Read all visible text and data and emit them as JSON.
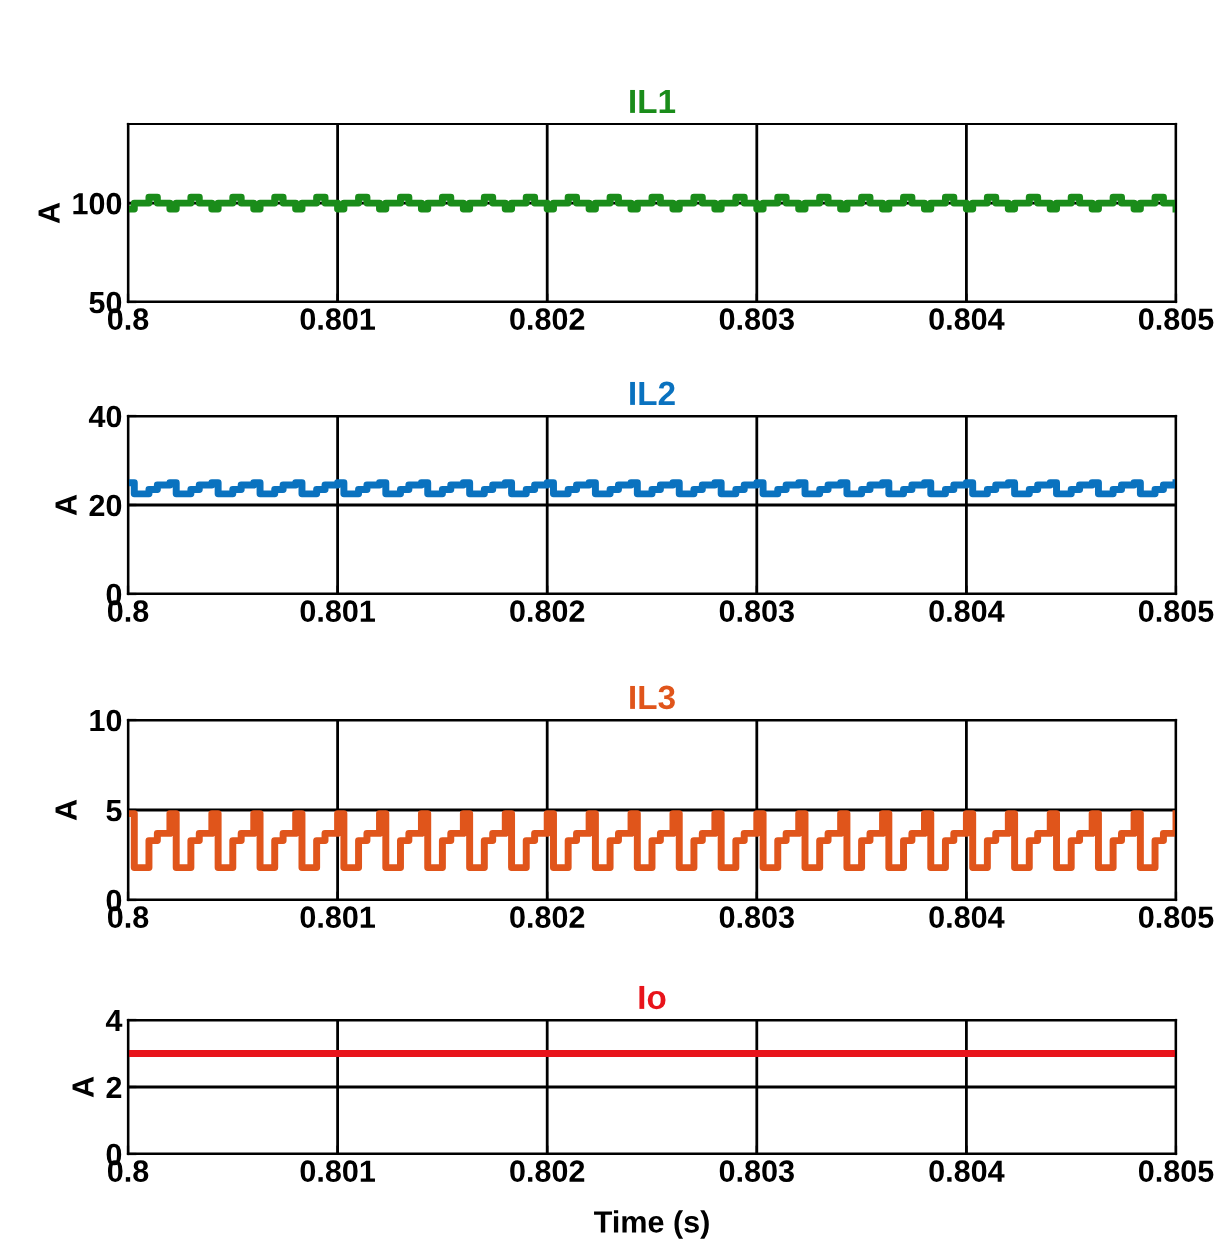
{
  "chart_data": [
    {
      "type": "step",
      "title": "IL1",
      "ylabel": "A",
      "xlim": [
        0.8,
        0.805
      ],
      "ylim": [
        50,
        140
      ],
      "xticks": [
        0.8,
        0.801,
        0.802,
        0.803,
        0.804,
        0.805
      ],
      "yticks": [
        50,
        100
      ],
      "grid": true,
      "x": [
        0.8,
        0.80003,
        0.8001,
        0.80014,
        0.8002,
        0.80023,
        0.8003,
        0.80034,
        0.8004,
        0.80043,
        0.8005,
        0.80054,
        0.8006,
        0.80063,
        0.8007,
        0.80074,
        0.8008,
        0.80083,
        0.8009,
        0.80094,
        0.801,
        0.80103,
        0.8011,
        0.80114,
        0.8012,
        0.80123,
        0.8013,
        0.80134,
        0.8014,
        0.80143,
        0.8015,
        0.80154,
        0.8016,
        0.80163,
        0.8017,
        0.80174,
        0.8018,
        0.80183,
        0.8019,
        0.80194,
        0.802,
        0.80203,
        0.8021,
        0.80214,
        0.8022,
        0.80223,
        0.8023,
        0.80234,
        0.8024,
        0.80243,
        0.8025,
        0.80254,
        0.8026,
        0.80263,
        0.8027,
        0.80274,
        0.8028,
        0.80283,
        0.8029,
        0.80294,
        0.803,
        0.80303,
        0.8031,
        0.80314,
        0.8032,
        0.80323,
        0.8033,
        0.80334,
        0.8034,
        0.80343,
        0.8035,
        0.80354,
        0.8036,
        0.80363,
        0.8037,
        0.80374,
        0.8038,
        0.80383,
        0.8039,
        0.80394,
        0.804,
        0.80403,
        0.8041,
        0.80414,
        0.8042,
        0.80423,
        0.8043,
        0.80434,
        0.8044,
        0.80443,
        0.8045,
        0.80454,
        0.8046,
        0.80463,
        0.8047,
        0.80474,
        0.8048,
        0.80483,
        0.8049,
        0.80494,
        0.805
      ],
      "series": [
        {
          "color": "#1a8c1a",
          "values": [
            97,
            100,
            103,
            100,
            97,
            100,
            103,
            100,
            97,
            100,
            103,
            100,
            97,
            100,
            103,
            100,
            97,
            100,
            103,
            100,
            97,
            100,
            103,
            100,
            97,
            100,
            103,
            100,
            97,
            100,
            103,
            100,
            97,
            100,
            103,
            100,
            97,
            100,
            103,
            100,
            97,
            100,
            103,
            100,
            97,
            100,
            103,
            100,
            97,
            100,
            103,
            100,
            97,
            100,
            103,
            100,
            97,
            100,
            103,
            100,
            97,
            100,
            103,
            100,
            97,
            100,
            103,
            100,
            97,
            100,
            103,
            100,
            97,
            100,
            103,
            100,
            97,
            100,
            103,
            100,
            97,
            100,
            103,
            100,
            97,
            100,
            103,
            100,
            97,
            100,
            103,
            100,
            97,
            100,
            103,
            100,
            97,
            100,
            103,
            100,
            97
          ]
        }
      ]
    },
    {
      "type": "step",
      "title": "IL2",
      "ylabel": "A",
      "xlim": [
        0.8,
        0.805
      ],
      "ylim": [
        0,
        40
      ],
      "xticks": [
        0.8,
        0.801,
        0.802,
        0.803,
        0.804,
        0.805
      ],
      "yticks": [
        0,
        20,
        40
      ],
      "grid": true,
      "x": [
        0.8,
        0.80003,
        0.8001,
        0.80014,
        0.8002,
        0.80023,
        0.8003,
        0.80034,
        0.8004,
        0.80043,
        0.8005,
        0.80054,
        0.8006,
        0.80063,
        0.8007,
        0.80074,
        0.8008,
        0.80083,
        0.8009,
        0.80094,
        0.801,
        0.80103,
        0.8011,
        0.80114,
        0.8012,
        0.80123,
        0.8013,
        0.80134,
        0.8014,
        0.80143,
        0.8015,
        0.80154,
        0.8016,
        0.80163,
        0.8017,
        0.80174,
        0.8018,
        0.80183,
        0.8019,
        0.80194,
        0.802,
        0.80203,
        0.8021,
        0.80214,
        0.8022,
        0.80223,
        0.8023,
        0.80234,
        0.8024,
        0.80243,
        0.8025,
        0.80254,
        0.8026,
        0.80263,
        0.8027,
        0.80274,
        0.8028,
        0.80283,
        0.8029,
        0.80294,
        0.803,
        0.80303,
        0.8031,
        0.80314,
        0.8032,
        0.80323,
        0.8033,
        0.80334,
        0.8034,
        0.80343,
        0.8035,
        0.80354,
        0.8036,
        0.80363,
        0.8037,
        0.80374,
        0.8038,
        0.80383,
        0.8039,
        0.80394,
        0.804,
        0.80403,
        0.8041,
        0.80414,
        0.8042,
        0.80423,
        0.8043,
        0.80434,
        0.8044,
        0.80443,
        0.8045,
        0.80454,
        0.8046,
        0.80463,
        0.8047,
        0.80474,
        0.8048,
        0.80483,
        0.8049,
        0.80494,
        0.805
      ],
      "series": [
        {
          "color": "#0a72bf",
          "values": [
            25,
            22.5,
            23.5,
            24.5,
            25,
            22.5,
            23.5,
            24.5,
            25,
            22.5,
            23.5,
            24.5,
            25,
            22.5,
            23.5,
            24.5,
            25,
            22.5,
            23.5,
            24.5,
            25,
            22.5,
            23.5,
            24.5,
            25,
            22.5,
            23.5,
            24.5,
            25,
            22.5,
            23.5,
            24.5,
            25,
            22.5,
            23.5,
            24.5,
            25,
            22.5,
            23.5,
            24.5,
            25,
            22.5,
            23.5,
            24.5,
            25,
            22.5,
            23.5,
            24.5,
            25,
            22.5,
            23.5,
            24.5,
            25,
            22.5,
            23.5,
            24.5,
            25,
            22.5,
            23.5,
            24.5,
            25,
            22.5,
            23.5,
            24.5,
            25,
            22.5,
            23.5,
            24.5,
            25,
            22.5,
            23.5,
            24.5,
            25,
            22.5,
            23.5,
            24.5,
            25,
            22.5,
            23.5,
            24.5,
            25,
            22.5,
            23.5,
            24.5,
            25,
            22.5,
            23.5,
            24.5,
            25,
            22.5,
            23.5,
            24.5,
            25,
            22.5,
            23.5,
            24.5,
            25,
            22.5,
            23.5,
            24.5,
            25
          ]
        }
      ]
    },
    {
      "type": "step",
      "title": "IL3",
      "ylabel": "A",
      "xlim": [
        0.8,
        0.805
      ],
      "ylim": [
        0,
        10
      ],
      "xticks": [
        0.8,
        0.801,
        0.802,
        0.803,
        0.804,
        0.805
      ],
      "yticks": [
        0,
        5,
        10
      ],
      "grid": true,
      "x": [
        0.8,
        0.80003,
        0.8001,
        0.80014,
        0.8002,
        0.80023,
        0.8003,
        0.80034,
        0.8004,
        0.80043,
        0.8005,
        0.80054,
        0.8006,
        0.80063,
        0.8007,
        0.80074,
        0.8008,
        0.80083,
        0.8009,
        0.80094,
        0.801,
        0.80103,
        0.8011,
        0.80114,
        0.8012,
        0.80123,
        0.8013,
        0.80134,
        0.8014,
        0.80143,
        0.8015,
        0.80154,
        0.8016,
        0.80163,
        0.8017,
        0.80174,
        0.8018,
        0.80183,
        0.8019,
        0.80194,
        0.802,
        0.80203,
        0.8021,
        0.80214,
        0.8022,
        0.80223,
        0.8023,
        0.80234,
        0.8024,
        0.80243,
        0.8025,
        0.80254,
        0.8026,
        0.80263,
        0.8027,
        0.80274,
        0.8028,
        0.80283,
        0.8029,
        0.80294,
        0.803,
        0.80303,
        0.8031,
        0.80314,
        0.8032,
        0.80323,
        0.8033,
        0.80334,
        0.8034,
        0.80343,
        0.8035,
        0.80354,
        0.8036,
        0.80363,
        0.8037,
        0.80374,
        0.8038,
        0.80383,
        0.8039,
        0.80394,
        0.804,
        0.80403,
        0.8041,
        0.80414,
        0.8042,
        0.80423,
        0.8043,
        0.80434,
        0.8044,
        0.80443,
        0.8045,
        0.80454,
        0.8046,
        0.80463,
        0.8047,
        0.80474,
        0.8048,
        0.80483,
        0.8049,
        0.80494,
        0.805
      ],
      "series": [
        {
          "color": "#e0551b",
          "values": [
            4.8,
            1.8,
            3.3,
            3.7,
            4.8,
            1.8,
            3.3,
            3.7,
            4.8,
            1.8,
            3.3,
            3.7,
            4.8,
            1.8,
            3.3,
            3.7,
            4.8,
            1.8,
            3.3,
            3.7,
            4.8,
            1.8,
            3.3,
            3.7,
            4.8,
            1.8,
            3.3,
            3.7,
            4.8,
            1.8,
            3.3,
            3.7,
            4.8,
            1.8,
            3.3,
            3.7,
            4.8,
            1.8,
            3.3,
            3.7,
            4.8,
            1.8,
            3.3,
            3.7,
            4.8,
            1.8,
            3.3,
            3.7,
            4.8,
            1.8,
            3.3,
            3.7,
            4.8,
            1.8,
            3.3,
            3.7,
            4.8,
            1.8,
            3.3,
            3.7,
            4.8,
            1.8,
            3.3,
            3.7,
            4.8,
            1.8,
            3.3,
            3.7,
            4.8,
            1.8,
            3.3,
            3.7,
            4.8,
            1.8,
            3.3,
            3.7,
            4.8,
            1.8,
            3.3,
            3.7,
            4.8,
            1.8,
            3.3,
            3.7,
            4.8,
            1.8,
            3.3,
            3.7,
            4.8,
            1.8,
            3.3,
            3.7,
            4.8,
            1.8,
            3.3,
            3.7,
            4.8,
            1.8,
            3.3,
            3.7,
            4.8
          ]
        }
      ]
    },
    {
      "type": "step",
      "title": "Io",
      "ylabel": "A",
      "xlabel": "Time (s)",
      "xlim": [
        0.8,
        0.805
      ],
      "ylim": [
        0,
        4
      ],
      "xticks": [
        0.8,
        0.801,
        0.802,
        0.803,
        0.804,
        0.805
      ],
      "yticks": [
        0,
        2,
        4
      ],
      "grid": true,
      "x": [
        0.8,
        0.805
      ],
      "series": [
        {
          "color": "#e8141b",
          "values": [
            3,
            3
          ]
        }
      ]
    }
  ]
}
